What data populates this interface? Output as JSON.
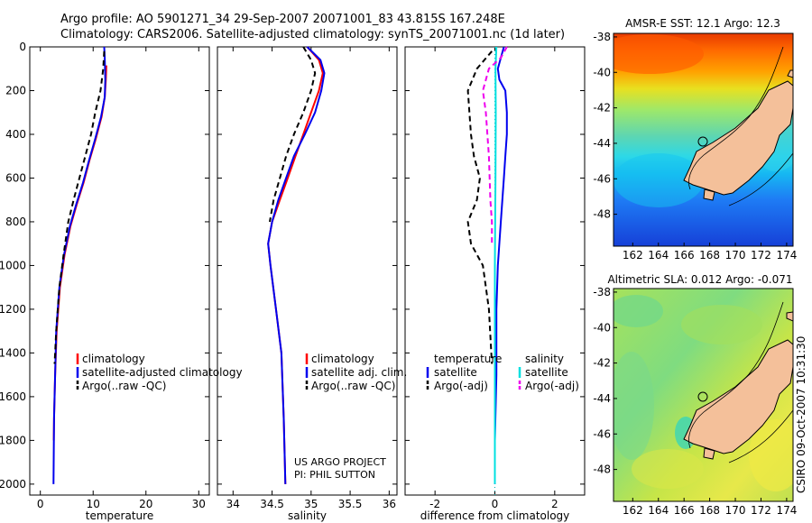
{
  "header": {
    "line1": "Argo profile: AO 5901271_34 29-Sep-2007 20071001_83 43.815S 167.248E",
    "line2": "Climatology: CARS2006. Satellite-adjusted climatology: synTS_20071001.nc (1d later)"
  },
  "credit": "CSIRO 09-Oct-2007 10:31:30",
  "project_note": [
    "US ARGO PROJECT",
    "PI: PHIL SUTTON"
  ],
  "colors": {
    "climatology": "#ff0000",
    "satellite": "#0000ee",
    "argo": "#000000",
    "satellite_diff": "#00e0e0",
    "argo_adj_diff": "#ee00ee",
    "land": "#f4c09a"
  },
  "chart_data": [
    {
      "type": "line",
      "xlabel": "temperature",
      "ylabel": "",
      "xlim": [
        -2,
        32
      ],
      "ylim": [
        2050,
        0
      ],
      "xticks": [
        0,
        10,
        20,
        30
      ],
      "yticks": [
        0,
        200,
        400,
        600,
        800,
        1000,
        1200,
        1400,
        1600,
        1800,
        2000
      ],
      "legend": {
        "position": "bottom-right",
        "entries": [
          "climatology",
          "satellite-adjusted climatology",
          "Argo(..raw -QC)"
        ]
      },
      "series": [
        {
          "key": "climatology",
          "color": "#ff0000",
          "dash": "solid",
          "x": [
            12.5,
            12.4,
            12.2,
            11.6,
            10.5,
            9.3,
            8.2,
            6.9,
            5.7,
            4.6,
            3.7,
            3.1,
            2.8,
            2.6,
            2.55
          ],
          "y": [
            85,
            150,
            230,
            320,
            420,
            520,
            620,
            720,
            820,
            950,
            1100,
            1300,
            1500,
            1700,
            1800
          ]
        },
        {
          "key": "satellite",
          "color": "#0000ee",
          "dash": "solid",
          "x": [
            12.1,
            12.2,
            12.3,
            12.2,
            11.5,
            10.4,
            9.2,
            8.1,
            6.8,
            5.6,
            4.5,
            3.6,
            3.0,
            2.8,
            2.6,
            2.55,
            2.5
          ],
          "y": [
            0,
            50,
            150,
            230,
            320,
            420,
            520,
            620,
            720,
            820,
            950,
            1100,
            1300,
            1500,
            1700,
            1850,
            2000
          ]
        },
        {
          "key": "argo",
          "color": "#000000",
          "dash": "dashed",
          "x": [
            12.1,
            11.9,
            11.4,
            10.4,
            9.6,
            8.5,
            7.4,
            6.3,
            5.3,
            4.4,
            3.6,
            3.0,
            2.7
          ],
          "y": [
            20,
            100,
            200,
            300,
            400,
            500,
            600,
            700,
            800,
            950,
            1100,
            1300,
            1450
          ]
        }
      ]
    },
    {
      "type": "line",
      "xlabel": "salinity",
      "ylabel": "",
      "xlim": [
        33.8,
        36.1
      ],
      "ylim": [
        2050,
        0
      ],
      "xticks": [
        34,
        34.5,
        35,
        35.5,
        36
      ],
      "yticks": [
        0,
        200,
        400,
        600,
        800,
        1000,
        1200,
        1400,
        1600,
        1800,
        2000
      ],
      "legend": {
        "position": "bottom-right",
        "entries": [
          "climatology",
          "satellite adj. clim.",
          "Argo(..raw -QC)"
        ]
      },
      "series": [
        {
          "key": "climatology",
          "color": "#ff0000",
          "dash": "solid",
          "x": [
            34.95,
            35.1,
            35.15,
            35.1,
            35.0,
            34.9,
            34.8,
            34.7,
            34.6,
            34.5,
            34.45,
            34.48,
            34.55,
            34.62,
            34.65,
            34.67
          ],
          "y": [
            0,
            60,
            120,
            200,
            300,
            400,
            500,
            600,
            700,
            800,
            900,
            1000,
            1200,
            1400,
            1700,
            2000
          ]
        },
        {
          "key": "satellite",
          "color": "#0000ee",
          "dash": "solid",
          "x": [
            34.95,
            35.12,
            35.17,
            35.13,
            35.05,
            34.92,
            34.78,
            34.68,
            34.58,
            34.5,
            34.45,
            34.48,
            34.55,
            34.62,
            34.65,
            34.67
          ],
          "y": [
            0,
            60,
            120,
            200,
            300,
            400,
            500,
            600,
            700,
            800,
            900,
            1000,
            1200,
            1400,
            1700,
            2000
          ]
        },
        {
          "key": "argo",
          "color": "#000000",
          "dash": "dashed",
          "x": [
            34.9,
            35.0,
            35.05,
            35.0,
            34.9,
            34.78,
            34.68,
            34.6,
            34.52,
            34.47
          ],
          "y": [
            0,
            60,
            120,
            200,
            300,
            400,
            500,
            600,
            700,
            800
          ]
        }
      ]
    },
    {
      "type": "line",
      "xlabel": "difference from climatology",
      "ylabel": "",
      "xlim": [
        -3,
        3
      ],
      "ylim": [
        2050,
        0
      ],
      "xticks": [
        -2,
        0,
        2
      ],
      "yticks": [
        0,
        200,
        400,
        600,
        800,
        1000,
        1200,
        1400,
        1600,
        1800,
        2000
      ],
      "legend": {
        "position": "bottom",
        "groups": [
          {
            "title": "temperature",
            "entries": [
              "satellite",
              "Argo(-adj)"
            ]
          },
          {
            "title": "salinity",
            "entries": [
              "satellite",
              "Argo(-adj)"
            ]
          }
        ]
      },
      "series": [
        {
          "key": "temp_satellite",
          "color": "#0000ee",
          "dash": "solid",
          "x": [
            0.3,
            0.2,
            0.1,
            0.15,
            0.35,
            0.4,
            0.4,
            0.35,
            0.3,
            0.2,
            0.1,
            0.05,
            0.05,
            0.0,
            0.0
          ],
          "y": [
            0,
            50,
            100,
            150,
            200,
            300,
            400,
            500,
            600,
            800,
            1000,
            1200,
            1500,
            1800,
            2000
          ]
        },
        {
          "key": "temp_argo",
          "color": "#000000",
          "dash": "dashed",
          "x": [
            -0.1,
            -0.6,
            -0.9,
            -0.85,
            -0.8,
            -0.7,
            -0.5,
            -0.6,
            -0.9,
            -0.8,
            -0.4,
            -0.2,
            -0.1
          ],
          "y": [
            20,
            100,
            200,
            300,
            400,
            500,
            600,
            700,
            800,
            900,
            1000,
            1200,
            1450
          ]
        },
        {
          "key": "sal_satellite",
          "color": "#00e0e0",
          "dash": "solid",
          "x": [
            0.05,
            0.02,
            0.03,
            0.02,
            0.0,
            0.0,
            0.0
          ],
          "y": [
            0,
            100,
            300,
            600,
            1000,
            1500,
            2000
          ]
        },
        {
          "key": "sal_argo",
          "color": "#ee00ee",
          "dash": "dashed",
          "x": [
            0.4,
            0.2,
            -0.2,
            -0.4,
            -0.3,
            -0.2,
            -0.15,
            -0.1,
            -0.1
          ],
          "y": [
            0,
            50,
            100,
            200,
            300,
            500,
            700,
            800,
            900
          ]
        }
      ]
    },
    {
      "type": "heatmap",
      "title": "AMSR-E SST: 12.1 Argo: 12.3",
      "xlim": [
        160.5,
        174.5
      ],
      "ylim": [
        -49.8,
        -37.8
      ],
      "xticks": [
        162,
        164,
        166,
        168,
        170,
        172,
        174
      ],
      "yticks": [
        -38,
        -40,
        -42,
        -44,
        -46,
        -48
      ],
      "marker": {
        "lon": 167.25,
        "lat": -43.8
      }
    },
    {
      "type": "heatmap",
      "title": "Altimetric SLA: 0.012 Argo: -0.071",
      "xlim": [
        160.5,
        174.5
      ],
      "ylim": [
        -49.8,
        -37.8
      ],
      "xticks": [
        162,
        164,
        166,
        168,
        170,
        172,
        174
      ],
      "yticks": [
        -38,
        -40,
        -42,
        -44,
        -46,
        -48
      ],
      "marker": {
        "lon": 167.25,
        "lat": -43.8
      }
    }
  ]
}
